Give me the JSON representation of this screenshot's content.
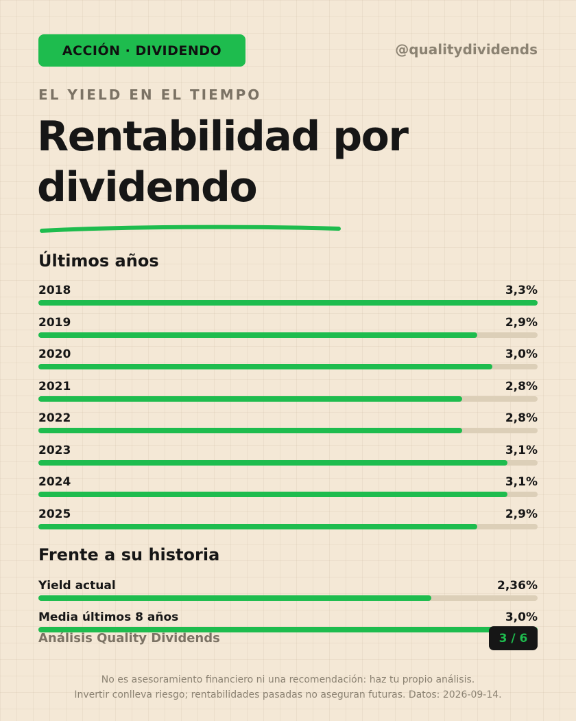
{
  "header": {
    "badge": "ACCIÓN · DIVIDENDO",
    "handle": "@qualitydividends",
    "eyebrow": "EL YIELD EN EL TIEMPO",
    "title_line1": "Rentabilidad por",
    "title_line2": "dividendo"
  },
  "sections": {
    "years_title": "Últimos años",
    "history_title": "Frente a su historia"
  },
  "chart_data": [
    {
      "type": "bar",
      "title": "Últimos años",
      "orientation": "horizontal",
      "categories": [
        "2018",
        "2019",
        "2020",
        "2021",
        "2022",
        "2023",
        "2024",
        "2025"
      ],
      "values": [
        3.3,
        2.9,
        3.0,
        2.8,
        2.8,
        3.1,
        3.1,
        2.9
      ],
      "value_labels": [
        "3,3%",
        "2,9%",
        "3,0%",
        "2,8%",
        "2,8%",
        "3,1%",
        "3,1%",
        "2,9%"
      ],
      "xlim": [
        0,
        3.3
      ],
      "unit": "%"
    },
    {
      "type": "bar",
      "title": "Frente a su historia",
      "orientation": "horizontal",
      "categories": [
        "Yield actual",
        "Media últimos 8 años"
      ],
      "values": [
        2.36,
        3.0
      ],
      "value_labels": [
        "2,36%",
        "3,0%"
      ],
      "xlim": [
        0,
        3.0
      ],
      "unit": "%"
    }
  ],
  "footer": {
    "brand": "Análisis Quality Dividends",
    "page": "3 / 6",
    "disclaimer_line1": "No es asesoramiento financiero ni una recomendación: haz tu propio análisis.",
    "disclaimer_line2": "Invertir conlleva riesgo; rentabilidades pasadas no aseguran futuras. Datos: 2026-09-14."
  },
  "colors": {
    "accent": "#1ebc4e",
    "background": "#f4e8d6",
    "track": "#dccfb8",
    "text": "#161616",
    "muted": "#7b7264"
  }
}
